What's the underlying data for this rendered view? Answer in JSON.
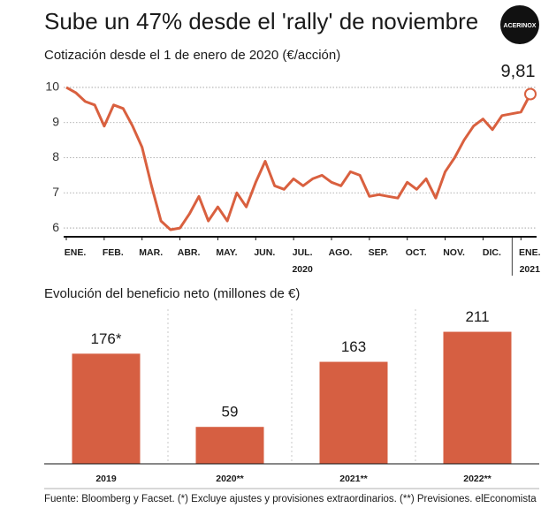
{
  "title": "Sube un 47% desde el 'rally' de noviembre",
  "logo": "ACERINOX",
  "source": "Fuente: Bloomberg y Facset. (*) Excluye ajustes y provisiones extraordinarios. (**) Previsiones. elEconomista",
  "chart_data": [
    {
      "type": "line",
      "title": "Cotización desde el 1 de enero de 2020 (€/acción)",
      "categories": [
        "ENE.",
        null,
        null,
        null,
        "FEB.",
        null,
        null,
        null,
        "MAR.",
        null,
        null,
        null,
        "ABR.",
        null,
        null,
        null,
        "MAY.",
        null,
        null,
        null,
        "JUN.",
        null,
        null,
        null,
        "JUL.",
        null,
        null,
        null,
        "AGO.",
        null,
        null,
        null,
        "SEP.",
        null,
        null,
        null,
        "OCT.",
        null,
        null,
        null,
        "NOV.",
        null,
        null,
        null,
        "DIC.",
        null,
        null,
        null,
        "ENE.",
        null
      ],
      "year_labels": [
        {
          "label": "2020",
          "at": 24
        },
        {
          "label": "2021",
          "at": 48
        }
      ],
      "values": [
        10.0,
        9.85,
        9.6,
        9.5,
        8.9,
        9.5,
        9.4,
        8.9,
        8.3,
        7.2,
        6.2,
        5.95,
        6.0,
        6.4,
        6.9,
        6.2,
        6.6,
        6.2,
        7.0,
        6.6,
        7.3,
        7.9,
        7.2,
        7.1,
        7.4,
        7.2,
        7.4,
        7.5,
        7.3,
        7.2,
        7.6,
        7.5,
        6.9,
        6.95,
        6.9,
        6.85,
        7.3,
        7.1,
        7.4,
        6.85,
        7.6,
        8.0,
        8.5,
        8.9,
        9.1,
        8.8,
        9.2,
        9.25,
        9.3,
        9.81
      ],
      "annotation": {
        "index": 49,
        "label": "9,81"
      },
      "color": "#d9603f",
      "ylim": [
        5.75,
        10.25
      ],
      "yticks": [
        6,
        7,
        8,
        9,
        10
      ],
      "grid": true
    },
    {
      "type": "bar",
      "title": "Evolución del beneficio neto (millones de €)",
      "categories": [
        "2019",
        "2020**",
        "2021**",
        "2022**"
      ],
      "values": [
        176,
        59,
        163,
        211
      ],
      "value_labels": [
        "176*",
        "59",
        "163",
        "211"
      ],
      "color": "#d65f42",
      "ylim": [
        0,
        240
      ]
    }
  ]
}
